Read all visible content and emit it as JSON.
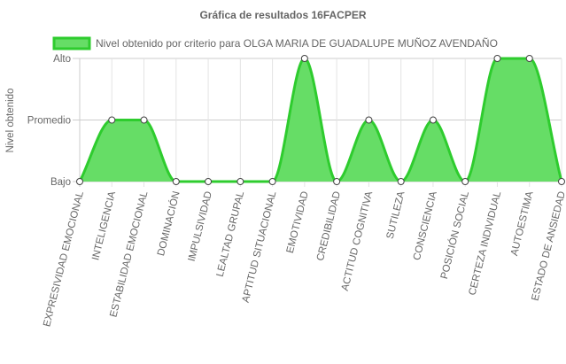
{
  "chart_data": {
    "type": "area",
    "title": "Gráfica de resultados 16FACPER",
    "ylabel": "Nivel obtenido",
    "xlabel": "",
    "y_levels": [
      "Bajo",
      "Promedio",
      "Alto"
    ],
    "categories": [
      "EXPRESIVIDAD EMOCIONAL",
      "INTELIGENCIA",
      "ESTABILIDAD EMOCIONAL",
      "DOMINACIÓN",
      "IMPULSIVIDAD",
      "LEALTAD GRUPAL",
      "APTITUD SITUACIONAL",
      "EMOTIVIDAD",
      "CREDIBILIDAD",
      "ACTITUD COGNITIVA",
      "SUTILEZA",
      "CONSCIENCIA",
      "POSICIÓN SOCIAL",
      "CERTEZA INDIVIDUAL",
      "AUTOESTIMA",
      "ESTADO DE ANSIEDAD"
    ],
    "series": [
      {
        "name": "Nivel obtenido por criterio para OLGA MARIA DE GUADALUPE MUÑOZ AVENDAÑO",
        "values": [
          0,
          1,
          1,
          0,
          0,
          0,
          0,
          2,
          0,
          1,
          0,
          1,
          0,
          2,
          2,
          0
        ],
        "color": "#2ecc2e",
        "fill": "#66dd66"
      }
    ],
    "ylim": [
      0,
      2
    ],
    "grid": true,
    "legend": "top"
  }
}
